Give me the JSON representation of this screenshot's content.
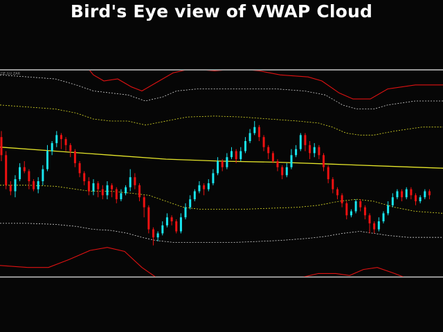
{
  "title": "Bird's Eye view of VWAP Cloud",
  "symbol_label": "DE.GU.ZAR",
  "colors": {
    "background": "#060606",
    "separator": "#c8c8c8",
    "bull_candle": "#19e6f0",
    "bear_candle": "#ee1111",
    "vwap_line": "#e6e62a",
    "inner_band": "#dede28",
    "middle_band": "#d8d8d8",
    "outer_band": "#e01212",
    "title_text": "#ffffff"
  },
  "chart_data": {
    "type": "candlestick",
    "title": "Bird's Eye view of VWAP Cloud",
    "grid": false,
    "ylim": [
      0,
      100
    ],
    "lines": {
      "vwap": [
        [
          0,
          57
        ],
        [
          80,
          55
        ],
        [
          160,
          53
        ],
        [
          240,
          51
        ],
        [
          320,
          50
        ],
        [
          400,
          49.5
        ],
        [
          480,
          48.5
        ],
        [
          560,
          47.5
        ],
        [
          640,
          46.5
        ]
      ],
      "upper_outer": [
        [
          118,
          100
        ],
        [
          135,
          93
        ],
        [
          150,
          90
        ],
        [
          170,
          91
        ],
        [
          190,
          87
        ],
        [
          205,
          85
        ],
        [
          225,
          89
        ],
        [
          250,
          94
        ],
        [
          275,
          96
        ],
        [
          310,
          95
        ],
        [
          345,
          96
        ],
        [
          375,
          95
        ],
        [
          405,
          93
        ],
        [
          445,
          92
        ],
        [
          465,
          90
        ],
        [
          490,
          84
        ],
        [
          510,
          81
        ],
        [
          535,
          81
        ],
        [
          560,
          86
        ],
        [
          600,
          88
        ],
        [
          640,
          88
        ]
      ],
      "upper_mid": [
        [
          0,
          93
        ],
        [
          40,
          92
        ],
        [
          80,
          91
        ],
        [
          110,
          88
        ],
        [
          135,
          85
        ],
        [
          160,
          84
        ],
        [
          185,
          83
        ],
        [
          210,
          80
        ],
        [
          235,
          82
        ],
        [
          255,
          85
        ],
        [
          285,
          86
        ],
        [
          320,
          86
        ],
        [
          360,
          86
        ],
        [
          400,
          86
        ],
        [
          440,
          85
        ],
        [
          470,
          83
        ],
        [
          495,
          78
        ],
        [
          515,
          76
        ],
        [
          540,
          76
        ],
        [
          560,
          78
        ],
        [
          600,
          80
        ],
        [
          640,
          80
        ]
      ],
      "upper_inner": [
        [
          0,
          78
        ],
        [
          40,
          77
        ],
        [
          80,
          76
        ],
        [
          110,
          74
        ],
        [
          135,
          71
        ],
        [
          160,
          70
        ],
        [
          185,
          70
        ],
        [
          210,
          68
        ],
        [
          240,
          70
        ],
        [
          270,
          72
        ],
        [
          310,
          72.5
        ],
        [
          350,
          72
        ],
        [
          390,
          71
        ],
        [
          430,
          70
        ],
        [
          460,
          69
        ],
        [
          480,
          67
        ],
        [
          500,
          64
        ],
        [
          520,
          63
        ],
        [
          540,
          63
        ],
        [
          570,
          65
        ],
        [
          610,
          67
        ],
        [
          640,
          67
        ]
      ],
      "lower_inner": [
        [
          0,
          38
        ],
        [
          40,
          38
        ],
        [
          80,
          37.5
        ],
        [
          110,
          36
        ],
        [
          130,
          35
        ],
        [
          160,
          35
        ],
        [
          190,
          34
        ],
        [
          215,
          33
        ],
        [
          240,
          30
        ],
        [
          265,
          27
        ],
        [
          290,
          26
        ],
        [
          320,
          26
        ],
        [
          350,
          26
        ],
        [
          390,
          26.5
        ],
        [
          430,
          27
        ],
        [
          460,
          28
        ],
        [
          490,
          30
        ],
        [
          515,
          31
        ],
        [
          540,
          30
        ],
        [
          570,
          27
        ],
        [
          600,
          25
        ],
        [
          640,
          24
        ]
      ],
      "lower_mid": [
        [
          0,
          19
        ],
        [
          40,
          19
        ],
        [
          80,
          18.5
        ],
        [
          110,
          17.5
        ],
        [
          135,
          16
        ],
        [
          160,
          15.5
        ],
        [
          185,
          14
        ],
        [
          205,
          12
        ],
        [
          225,
          10.5
        ],
        [
          250,
          9.5
        ],
        [
          275,
          9.5
        ],
        [
          310,
          9.5
        ],
        [
          340,
          9.5
        ],
        [
          375,
          10
        ],
        [
          405,
          10.5
        ],
        [
          445,
          11.5
        ],
        [
          470,
          12.5
        ],
        [
          495,
          14
        ],
        [
          520,
          15
        ],
        [
          540,
          14
        ],
        [
          560,
          13
        ],
        [
          590,
          12
        ],
        [
          620,
          12
        ],
        [
          640,
          12
        ]
      ],
      "lower_outer": [
        [
          0,
          -2
        ],
        [
          40,
          -3
        ],
        [
          70,
          -3
        ],
        [
          100,
          1
        ],
        [
          130,
          5.5
        ],
        [
          155,
          7
        ],
        [
          180,
          5
        ],
        [
          205,
          -3
        ],
        [
          230,
          -9
        ],
        [
          260,
          -13
        ],
        [
          290,
          -13.5
        ],
        [
          330,
          -13.5
        ],
        [
          370,
          -13
        ],
        [
          405,
          -12
        ],
        [
          435,
          -8
        ],
        [
          460,
          -6
        ],
        [
          485,
          -6
        ],
        [
          505,
          -7
        ],
        [
          525,
          -4
        ],
        [
          545,
          -3
        ],
        [
          570,
          -6
        ],
        [
          600,
          -10
        ],
        [
          620,
          -13
        ],
        [
          640,
          -15
        ]
      ]
    },
    "candles": [
      [
        62,
        53,
        65,
        50
      ],
      [
        53,
        38,
        55,
        36
      ],
      [
        38,
        35,
        40,
        33
      ],
      [
        35,
        41,
        43,
        32
      ],
      [
        41,
        47,
        49,
        40
      ],
      [
        47,
        45,
        50,
        44
      ],
      [
        45,
        40,
        46,
        36
      ],
      [
        40,
        36,
        41,
        35
      ],
      [
        36,
        40,
        42,
        34
      ],
      [
        40,
        46,
        48,
        38
      ],
      [
        46,
        55,
        58,
        45
      ],
      [
        55,
        59,
        60,
        53
      ],
      [
        59,
        63,
        65,
        57
      ],
      [
        63,
        61,
        64,
        56
      ],
      [
        61,
        58,
        62,
        55
      ],
      [
        58,
        55,
        59,
        52
      ],
      [
        55,
        49,
        56,
        47
      ],
      [
        49,
        44,
        50,
        42
      ],
      [
        44,
        40,
        45,
        38
      ],
      [
        40,
        35,
        42,
        33
      ],
      [
        35,
        39,
        41,
        33
      ],
      [
        39,
        36,
        40,
        32
      ],
      [
        36,
        33,
        38,
        31
      ],
      [
        33,
        38,
        40,
        31
      ],
      [
        38,
        36,
        39,
        32
      ],
      [
        36,
        31,
        37,
        29
      ],
      [
        31,
        34,
        36,
        30
      ],
      [
        34,
        37,
        38,
        33
      ],
      [
        37,
        42,
        46,
        35
      ],
      [
        42,
        38,
        44,
        36
      ],
      [
        38,
        32,
        39,
        30
      ],
      [
        32,
        27,
        33,
        22
      ],
      [
        27,
        16,
        28,
        14
      ],
      [
        16,
        12,
        17,
        8
      ],
      [
        12,
        14,
        15,
        10
      ],
      [
        14,
        18,
        20,
        13
      ],
      [
        18,
        22,
        24,
        17
      ],
      [
        22,
        20,
        23,
        18
      ],
      [
        20,
        15,
        21,
        14
      ],
      [
        15,
        22,
        24,
        14
      ],
      [
        22,
        27,
        29,
        21
      ],
      [
        27,
        31,
        33,
        26
      ],
      [
        31,
        35,
        36,
        30
      ],
      [
        35,
        38,
        40,
        34
      ],
      [
        38,
        36,
        39,
        33
      ],
      [
        36,
        39,
        41,
        35
      ],
      [
        39,
        44,
        46,
        38
      ],
      [
        44,
        50,
        52,
        43
      ],
      [
        50,
        47,
        51,
        45
      ],
      [
        47,
        52,
        54,
        46
      ],
      [
        52,
        55,
        57,
        51
      ],
      [
        55,
        51,
        56,
        49
      ],
      [
        51,
        55,
        57,
        50
      ],
      [
        55,
        60,
        62,
        54
      ],
      [
        60,
        64,
        66,
        59
      ],
      [
        64,
        67,
        70,
        63
      ],
      [
        67,
        62,
        68,
        60
      ],
      [
        62,
        57,
        63,
        55
      ],
      [
        57,
        54,
        58,
        51
      ],
      [
        54,
        50,
        55,
        49
      ],
      [
        50,
        47,
        51,
        45
      ],
      [
        47,
        43,
        48,
        41
      ],
      [
        43,
        47,
        49,
        42
      ],
      [
        47,
        53,
        56,
        46
      ],
      [
        53,
        56,
        58,
        52
      ],
      [
        56,
        63,
        64,
        55
      ],
      [
        63,
        58,
        64,
        55
      ],
      [
        58,
        54,
        60,
        51
      ],
      [
        54,
        57,
        59,
        52
      ],
      [
        57,
        53,
        58,
        51
      ],
      [
        53,
        47,
        54,
        45
      ],
      [
        47,
        41,
        48,
        39
      ],
      [
        41,
        36,
        42,
        34
      ],
      [
        36,
        33,
        37,
        31
      ],
      [
        33,
        29,
        34,
        27
      ],
      [
        29,
        23,
        30,
        21
      ],
      [
        23,
        25,
        26,
        22
      ],
      [
        25,
        30,
        31,
        24
      ],
      [
        30,
        27,
        31,
        25
      ],
      [
        27,
        23,
        28,
        21
      ],
      [
        23,
        19,
        24,
        14
      ],
      [
        19,
        16,
        20,
        14
      ],
      [
        16,
        20,
        22,
        15
      ],
      [
        20,
        24,
        25,
        19
      ],
      [
        24,
        28,
        30,
        23
      ],
      [
        28,
        32,
        34,
        27
      ],
      [
        32,
        35,
        36,
        31
      ],
      [
        35,
        32,
        36,
        30
      ],
      [
        32,
        36,
        37,
        31
      ],
      [
        36,
        33,
        37,
        31
      ],
      [
        33,
        30,
        34,
        28
      ],
      [
        30,
        32,
        33,
        29
      ],
      [
        32,
        35,
        36,
        31
      ],
      [
        35,
        33,
        36,
        31
      ]
    ]
  }
}
